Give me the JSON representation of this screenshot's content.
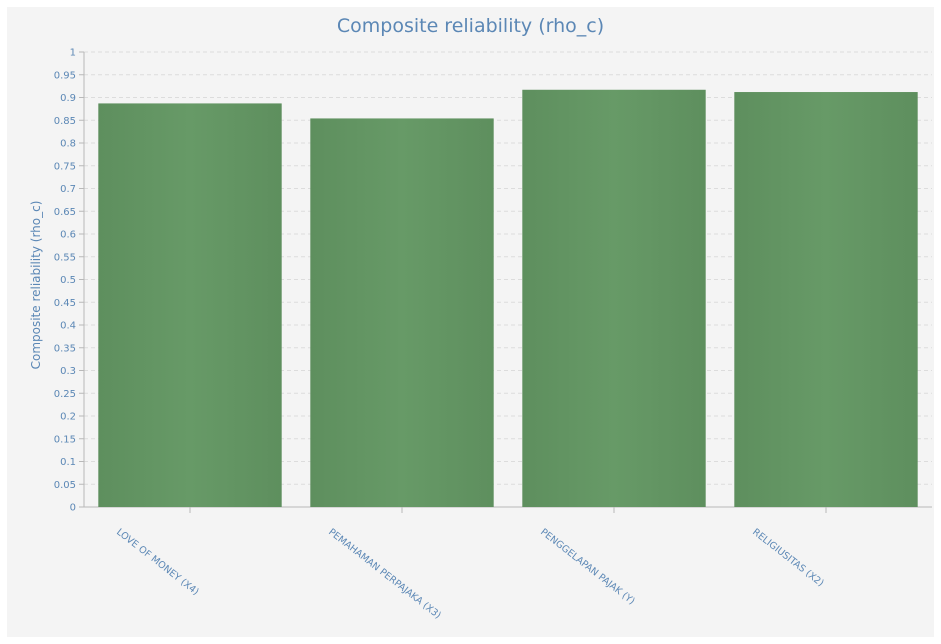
{
  "chart_data": {
    "type": "bar",
    "title": "Composite reliability (rho_c)",
    "xlabel": "",
    "ylabel": "Composite reliability (rho_c)",
    "ylim": [
      0,
      1
    ],
    "y_tick_step": 0.05,
    "grid": true,
    "categories": [
      "LOVE OF MONEY (X4)",
      "PEMAHAMAN PERPAJAKA (X3)",
      "PENGGELAPAN PAJAK (Y)",
      "RELIGIUSITAS (X2)"
    ],
    "values": [
      0.887,
      0.854,
      0.917,
      0.912
    ],
    "bar_color": "#639663",
    "text_color": "#5b87b5",
    "background_color": "#f4f4f4"
  }
}
